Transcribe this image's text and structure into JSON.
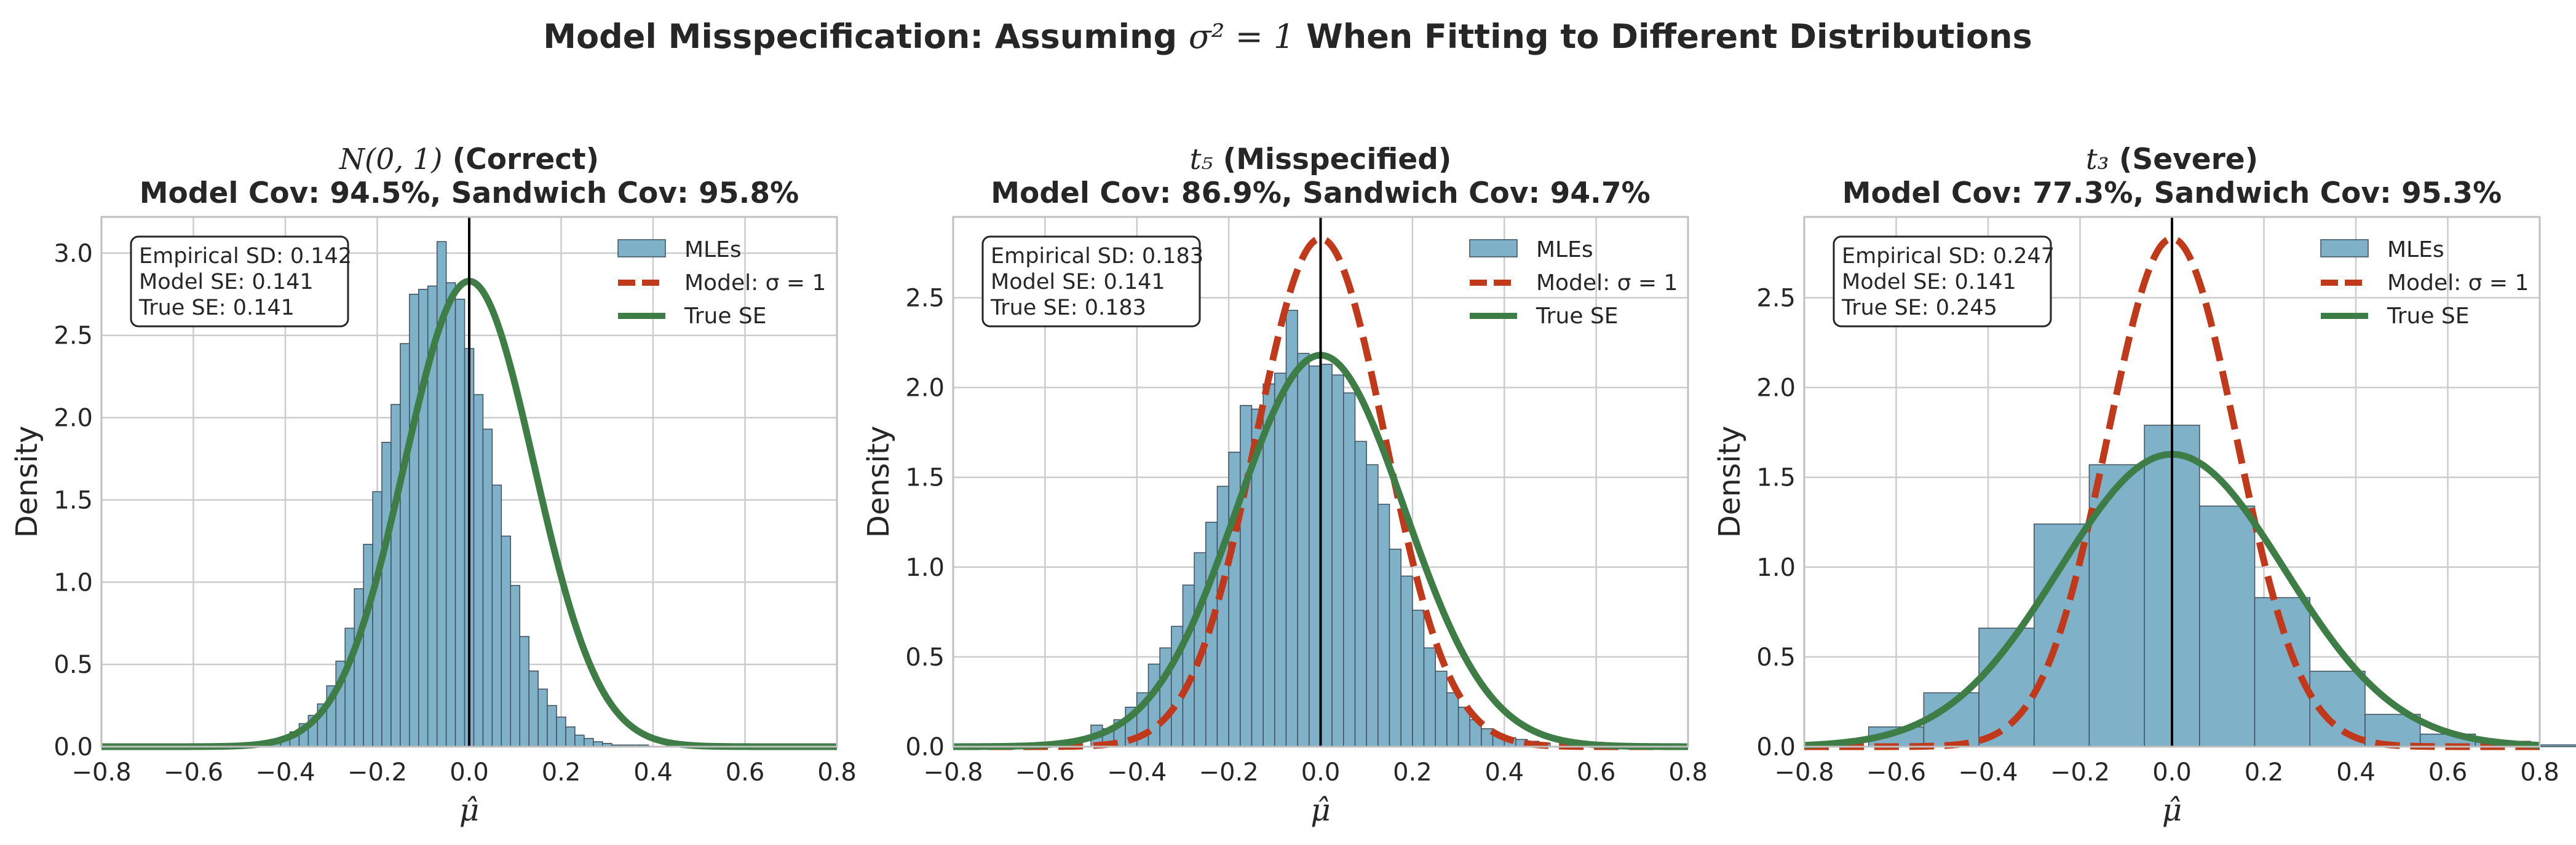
{
  "colors": {
    "hist_fill": "#7fb2c9",
    "hist_edge": "#3f4f5c",
    "model_curve": "#c0391b",
    "true_curve": "#3e7d45",
    "vline": "#000000",
    "grid": "#cccccc",
    "axes_edge": "#bfbfbf",
    "text": "#262626"
  },
  "chart_data": {
    "suptitle": {
      "prefix": "Model Misspecification: Assuming ",
      "math": "σ² = 1",
      "suffix": " When Fitting to Different Distributions"
    },
    "panels": [
      {
        "type": "histogram+line",
        "title_math": "N(0, 1)",
        "title_rest": " (Correct)",
        "subtitle": "Model Cov: 94.5%, Sandwich Cov: 95.8%",
        "xlabel": "μ̂",
        "ylabel": "Density",
        "xlim": [
          -0.8,
          0.8
        ],
        "ylim": [
          0,
          3.22
        ],
        "xticks": [
          "−0.8",
          "−0.6",
          "−0.4",
          "−0.2",
          "0.0",
          "0.2",
          "0.4",
          "0.6",
          "0.8"
        ],
        "yticks": [
          "0.0",
          "0.5",
          "1.0",
          "1.5",
          "2.0",
          "2.5",
          "3.0"
        ],
        "stats": [
          "Empirical SD: 0.142",
          "Model SE: 0.141",
          "True SE: 0.141"
        ],
        "legend": [
          "MLEs",
          "Model: σ = 1",
          "True SE"
        ],
        "show_model_curve": false,
        "vline_x": 0.0,
        "model_se": 0.141,
        "true_se": 0.141,
        "hist": {
          "start": -0.45,
          "width": 0.02,
          "counts": [
            0.02,
            0.04,
            0.06,
            0.09,
            0.14,
            0.19,
            0.26,
            0.37,
            0.52,
            0.72,
            0.96,
            1.23,
            1.55,
            1.85,
            2.08,
            2.45,
            2.75,
            2.78,
            2.8,
            3.07,
            2.82,
            2.72,
            2.42,
            2.14,
            1.93,
            1.59,
            1.28,
            0.98,
            0.67,
            0.46,
            0.35,
            0.25,
            0.18,
            0.12,
            0.07,
            0.05,
            0.03,
            0.02,
            0.01,
            0.01,
            0.01,
            0.01,
            0.0,
            0.0,
            0.0
          ]
        }
      },
      {
        "type": "histogram+line",
        "title_math": "t₅",
        "title_rest": " (Misspecified)",
        "subtitle": "Model Cov: 86.9%, Sandwich Cov: 94.7%",
        "xlabel": "μ̂",
        "ylabel": "Density",
        "xlim": [
          -0.8,
          0.8
        ],
        "ylim": [
          0,
          2.95
        ],
        "xticks": [
          "−0.8",
          "−0.6",
          "−0.4",
          "−0.2",
          "0.0",
          "0.2",
          "0.4",
          "0.6",
          "0.8"
        ],
        "yticks": [
          "0.0",
          "0.5",
          "1.0",
          "1.5",
          "2.0",
          "2.5"
        ],
        "stats": [
          "Empirical SD: 0.183",
          "Model SE: 0.141",
          "True SE: 0.183"
        ],
        "legend": [
          "MLEs",
          "Model: σ = 1",
          "True SE"
        ],
        "show_model_curve": true,
        "vline_x": 0.0,
        "model_se": 0.141,
        "true_se": 0.183,
        "hist": {
          "start": -0.5,
          "width": 0.025,
          "counts": [
            0.12,
            0.1,
            0.15,
            0.22,
            0.3,
            0.46,
            0.55,
            0.67,
            0.9,
            1.08,
            1.25,
            1.45,
            1.64,
            1.9,
            1.88,
            2.02,
            2.08,
            2.43,
            2.19,
            2.12,
            2.13,
            2.07,
            1.97,
            1.7,
            1.57,
            1.35,
            1.1,
            0.95,
            0.76,
            0.55,
            0.42,
            0.3,
            0.22,
            0.15,
            0.1,
            0.07,
            0.05,
            0.04,
            0.03,
            0.02
          ]
        }
      },
      {
        "type": "histogram+line",
        "title_math": "t₃",
        "title_rest": " (Severe)",
        "subtitle": "Model Cov: 77.3%, Sandwich Cov: 95.3%",
        "xlabel": "μ̂",
        "ylabel": "Density",
        "xlim": [
          -0.8,
          0.8
        ],
        "ylim": [
          0,
          2.95
        ],
        "xticks": [
          "−0.8",
          "−0.6",
          "−0.4",
          "−0.2",
          "0.0",
          "0.2",
          "0.4",
          "0.6",
          "0.8"
        ],
        "yticks": [
          "0.0",
          "0.5",
          "1.0",
          "1.5",
          "2.0",
          "2.5"
        ],
        "stats": [
          "Empirical SD: 0.247",
          "Model SE: 0.141",
          "True SE: 0.245"
        ],
        "legend": [
          "MLEs",
          "Model: σ = 1",
          "True SE"
        ],
        "show_model_curve": true,
        "vline_x": 0.0,
        "model_se": 0.141,
        "true_se": 0.245,
        "hist": {
          "start": -0.66,
          "width": 0.12,
          "counts": [
            0.11,
            0.3,
            0.66,
            1.24,
            1.57,
            1.79,
            1.34,
            0.83,
            0.42,
            0.18,
            0.07,
            0.03,
            0.01
          ]
        }
      }
    ]
  }
}
